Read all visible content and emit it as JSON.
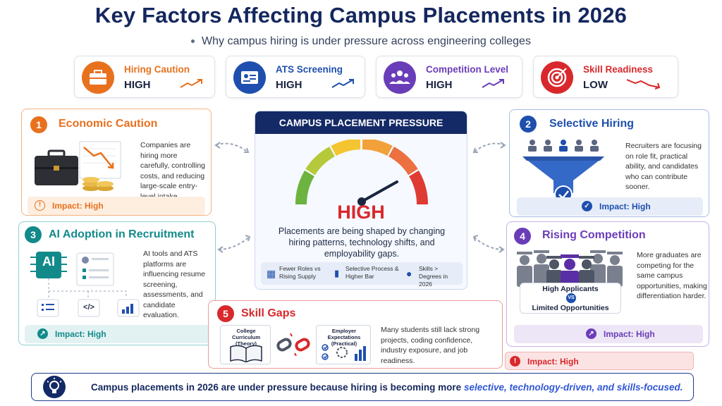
{
  "title": "Key Factors Affecting Campus Placements in 2026",
  "subtitle": "Why campus hiring is under pressure across engineering colleges",
  "kpis": [
    {
      "label": "Hiring Caution",
      "value": "HIGH",
      "color": "#e8711e",
      "icon": "briefcase-icon",
      "trend": "up"
    },
    {
      "label": "ATS Screening",
      "value": "HIGH",
      "color": "#1f4fae",
      "icon": "id-card-icon",
      "trend": "up"
    },
    {
      "label": "Competition Level",
      "value": "HIGH",
      "color": "#6a3db8",
      "icon": "people-icon",
      "trend": "up"
    },
    {
      "label": "Skill Readiness",
      "value": "LOW",
      "color": "#d9282c",
      "icon": "target-icon",
      "trend": "down"
    }
  ],
  "center": {
    "header": "CAMPUS PLACEMENT PRESSURE",
    "level": "HIGH",
    "text": "Placements are being shaped by changing hiring patterns, technology shifts, and employability gaps.",
    "footer": [
      {
        "text": "Fewer Roles vs Rising Supply",
        "icon": "building-icon"
      },
      {
        "text": "Selective Process & Higher Bar",
        "icon": "bar-chart-icon"
      },
      {
        "text": "Skills > Degrees in 2026",
        "icon": "person-icon"
      }
    ]
  },
  "factors": {
    "f1": {
      "num": "1",
      "title": "Economic Caution",
      "desc": "Companies are hiring more carefully, controlling costs, and reducing large-scale entry-level intake.",
      "impact": "Impact: High",
      "color": "#e8711e"
    },
    "f2": {
      "num": "2",
      "title": "Selective Hiring",
      "desc": "Recruiters are focusing on role fit, practical ability, and candidates who can contribute sooner.",
      "impact": "Impact: High",
      "color": "#1f4fae"
    },
    "f3": {
      "num": "3",
      "title": "AI Adoption in Recruitment",
      "desc": "AI tools and ATS platforms are influencing resume screening, assessments, and candidate evaluation.",
      "impact": "Impact: High",
      "color": "#138a8a"
    },
    "f4": {
      "num": "4",
      "title": "Rising Competition",
      "desc": "More graduates are competing for the same campus opportunities, making differentiation harder.",
      "impact": "Impact: High",
      "color": "#6a3db8",
      "label_top": "High Applicants",
      "label_vs": "VS",
      "label_bottom": "Limited Opportunities"
    },
    "f5": {
      "num": "5",
      "title": "Skill Gaps",
      "desc": "Many students still lack strong projects, coding confidence, industry exposure, and job readiness.",
      "impact": "Impact: High",
      "color": "#d9282c",
      "left_label": "College Curriculum (Theory)",
      "right_label": "Employer Expectations (Practical)"
    }
  },
  "ai_chip": "AI",
  "code_glyph": "</>",
  "banner": {
    "text": "Campus placements in 2026 are under pressure because hiring is becoming more ",
    "emph": "selective, technology-driven, and skills-focused."
  }
}
